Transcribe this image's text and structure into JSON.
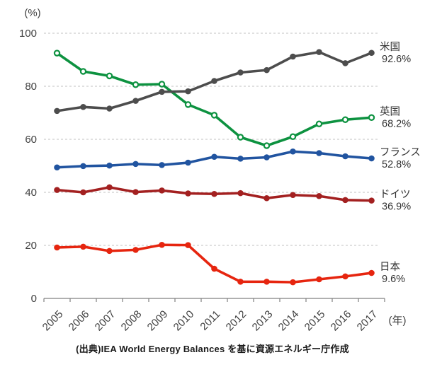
{
  "chart_data": {
    "type": "line",
    "title": "",
    "y_axis_unit": "(%)",
    "x_axis_unit": "(年)",
    "xlabel": "",
    "ylabel": "(%)",
    "ylim": [
      0,
      100
    ],
    "yticks": [
      0,
      20,
      40,
      60,
      80,
      100
    ],
    "grid": "horizontal-dashed",
    "legend_position": "right-end-labels",
    "categories": [
      "2005",
      "2006",
      "2007",
      "2008",
      "2009",
      "2010",
      "2011",
      "2012",
      "2013",
      "2014",
      "2015",
      "2016",
      "2017"
    ],
    "series": [
      {
        "id": "uk",
        "name": "英国",
        "end_value_label": "68.2%",
        "color": "#0D9240",
        "marker": "open-circle",
        "values": [
          92.5,
          85.6,
          83.9,
          80.6,
          80.8,
          73.1,
          69.1,
          60.8,
          57.6,
          61.0,
          65.8,
          67.4,
          68.2
        ]
      },
      {
        "id": "usa",
        "name": "米国",
        "end_value_label": "92.6%",
        "color": "#4D4D4D",
        "marker": "filled-circle",
        "values": [
          70.7,
          72.2,
          71.6,
          74.5,
          77.9,
          78.1,
          82.0,
          85.2,
          86.1,
          91.2,
          92.9,
          88.7,
          92.6
        ]
      },
      {
        "id": "france",
        "name": "フランス",
        "end_value_label": "52.8%",
        "color": "#2154A0",
        "marker": "filled-circle",
        "values": [
          49.4,
          49.9,
          50.1,
          50.7,
          50.3,
          51.2,
          53.4,
          52.7,
          53.2,
          55.4,
          54.8,
          53.6,
          52.8
        ]
      },
      {
        "id": "germany",
        "name": "ドイツ",
        "end_value_label": "36.9%",
        "color": "#A32020",
        "marker": "filled-circle",
        "values": [
          40.9,
          40.0,
          41.9,
          40.1,
          40.7,
          39.6,
          39.4,
          39.7,
          37.8,
          39.0,
          38.6,
          37.1,
          36.9
        ]
      },
      {
        "id": "japan",
        "name": "日本",
        "end_value_label": "9.6%",
        "color": "#E6250F",
        "marker": "filled-circle",
        "values": [
          19.2,
          19.5,
          17.9,
          18.3,
          20.2,
          20.1,
          11.2,
          6.3,
          6.3,
          6.1,
          7.2,
          8.3,
          9.6
        ]
      }
    ],
    "caption": "(出典)IEA World Energy Balances を基に資源エネルギー庁作成",
    "colors": {
      "axis": "#808080",
      "grid": "#C0C0C0",
      "tick_label": "#404040",
      "series_label": "#333333"
    }
  }
}
